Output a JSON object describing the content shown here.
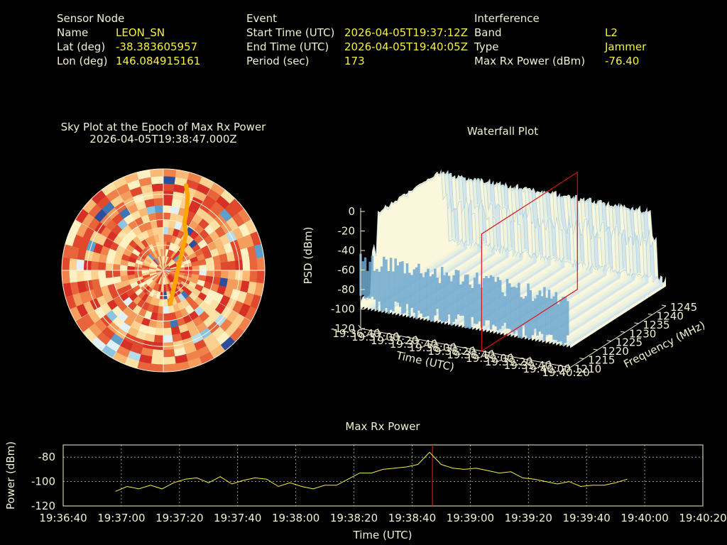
{
  "header": {
    "sensor": {
      "title": "Sensor Node",
      "rows": [
        {
          "label": "Name",
          "value": "LEON_SN"
        },
        {
          "label": "Lat (deg)",
          "value": "-38.383605957"
        },
        {
          "label": "Lon (deg)",
          "value": "146.084915161"
        }
      ]
    },
    "event": {
      "title": "Event",
      "rows": [
        {
          "label": "Start Time (UTC)",
          "value": "2026-04-05T19:37:12Z"
        },
        {
          "label": "End Time (UTC)",
          "value": "2026-04-05T19:40:05Z"
        },
        {
          "label": "Period (sec)",
          "value": "173"
        }
      ]
    },
    "interference": {
      "title": "Interference",
      "rows": [
        {
          "label": "Band",
          "value": "L2"
        },
        {
          "label": "Type",
          "value": "Jammer"
        },
        {
          "label": "Max Rx Power (dBm)",
          "value": "-76.40"
        }
      ]
    }
  },
  "colors": {
    "label": "#f2f0d2",
    "value": "#f5f04a",
    "trace": "#f5f04a",
    "marker": "#e01010",
    "track": "#ffa500"
  },
  "chart_data": [
    {
      "type": "heatmap",
      "title": "Sky Plot at the Epoch of Max Rx Power",
      "subtitle": "2026-04-05T19:38:47.000Z",
      "projection": "polar",
      "track": {
        "elevation_deg": [
          12,
          20,
          28,
          36,
          44,
          52,
          60
        ],
        "azimuth_deg": [
          15,
          18,
          20,
          22,
          24,
          32,
          168
        ]
      }
    },
    {
      "type": "area",
      "title": "Waterfall Plot",
      "zlabel": "PSD (dBm)",
      "xlabel": "Time (UTC)",
      "ylabel": "Frequency (MHz)",
      "zticks": [
        "0",
        "-20",
        "-40",
        "-60",
        "-80",
        "-100",
        "-120"
      ],
      "zlim": [
        -120,
        0
      ],
      "time_ticks": [
        "19:36:40",
        "19:37:00",
        "19:37:20",
        "19:37:40",
        "19:38:00",
        "19:38:20",
        "19:38:40",
        "19:39:00",
        "19:39:20",
        "19:39:40",
        "19:40:00",
        "19:40:20"
      ],
      "freq_ticks": [
        "1210",
        "1215",
        "1220",
        "1225",
        "1230",
        "1235",
        "1240",
        "1245"
      ],
      "freq_lim": [
        1210,
        1245
      ],
      "band_mhz": [
        1216,
        1240
      ],
      "band_psd_dbm": -5,
      "floor_psd_dbm": -95,
      "marker_time": "19:38:47"
    },
    {
      "type": "line",
      "title": "Max Rx Power",
      "xlabel": "Time (UTC)",
      "ylabel": "Power (dBm)",
      "x_ticks": [
        "19:36:40",
        "19:37:00",
        "19:37:20",
        "19:37:40",
        "19:38:00",
        "19:38:20",
        "19:38:40",
        "19:39:00",
        "19:39:20",
        "19:39:40",
        "19:40:00",
        "19:40:20"
      ],
      "y_ticks": [
        "-80",
        "-100",
        "-120"
      ],
      "ylim": [
        -120,
        -70
      ],
      "xlim": [
        "19:36:40",
        "19:40:20"
      ],
      "grid": true,
      "marker_time": "19:38:47",
      "series": [
        {
          "x": [
            "19:36:58",
            "19:37:02",
            "19:37:06",
            "19:37:10",
            "19:37:14",
            "19:37:18",
            "19:37:22",
            "19:37:26",
            "19:37:30",
            "19:37:34",
            "19:37:38",
            "19:37:42",
            "19:37:46",
            "19:37:50",
            "19:37:54",
            "19:37:58",
            "19:38:02",
            "19:38:06",
            "19:38:10",
            "19:38:14",
            "19:38:18",
            "19:38:22",
            "19:38:26",
            "19:38:30",
            "19:38:34",
            "19:38:38",
            "19:38:42",
            "19:38:46",
            "19:38:50",
            "19:38:54",
            "19:38:58",
            "19:39:02",
            "19:39:06",
            "19:39:10",
            "19:39:14",
            "19:39:18",
            "19:39:22",
            "19:39:26",
            "19:39:30",
            "19:39:34",
            "19:39:38",
            "19:39:42",
            "19:39:46",
            "19:39:50",
            "19:39:54"
          ],
          "values": [
            -108,
            -104,
            -106,
            -103,
            -106,
            -101,
            -98,
            -97,
            -101,
            -96,
            -102,
            -99,
            -97,
            -98,
            -104,
            -101,
            -104,
            -106,
            -103,
            -103,
            -98,
            -93,
            -93,
            -90,
            -89,
            -88,
            -86,
            -76,
            -86,
            -89,
            -90,
            -89,
            -91,
            -93,
            -92,
            -97,
            -98,
            -100,
            -102,
            -100,
            -104,
            -103,
            -103,
            -101,
            -98
          ]
        }
      ]
    }
  ]
}
